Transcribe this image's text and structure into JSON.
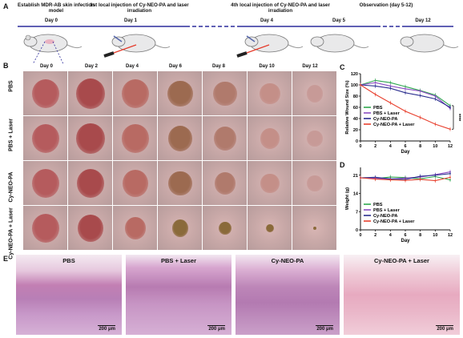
{
  "panel_letters": {
    "a": "A",
    "b": "B",
    "c": "C",
    "d": "D",
    "e": "E"
  },
  "timeline": {
    "steps": [
      {
        "title": "Establish MDR-AB skin infection model",
        "day": "Day 0"
      },
      {
        "title": "1st local injection of Cy-NEO-PA and laser irradiation",
        "day": "Day 1"
      },
      {
        "title": "4th local injection of Cy-NEO-PA and laser irradiation",
        "day": "Day 4"
      },
      {
        "title": "Observation (day 5-12)",
        "day": "Day 5"
      },
      {
        "title": "",
        "day": "Day 12"
      }
    ],
    "colors": {
      "line": "#2c2c9c",
      "laser": "#e53b2b"
    }
  },
  "photo_grid": {
    "days": [
      "Day 0",
      "Day 2",
      "Day 4",
      "Day 6",
      "Day 8",
      "Day 10",
      "Day 12"
    ],
    "groups": [
      "PBS",
      "PBS + Laser",
      "Cy-NEO-PA",
      "Cy-NEO-PA + Laser"
    ]
  },
  "histology": {
    "groups": [
      "PBS",
      "PBS + Laser",
      "Cy-NEO-PA",
      "Cy-NEO-PA + Laser"
    ],
    "scale_label": "200 μm"
  },
  "chart_data": [
    {
      "type": "line",
      "ylabel": "Relative Wound Size (%)",
      "xlabel": "Day",
      "x": [
        0,
        2,
        4,
        6,
        8,
        10,
        12
      ],
      "xticks": [
        "0",
        "2",
        "4",
        "6",
        "8",
        "10",
        "12"
      ],
      "ylim": [
        0,
        120
      ],
      "yticks": [
        "0",
        "20",
        "40",
        "60",
        "80",
        "100",
        "120"
      ],
      "annotation": "****",
      "legend_position": "bottom-left",
      "series": [
        {
          "name": "PBS",
          "color": "#2fa84f",
          "values": [
            100,
            108,
            104,
            97,
            90,
            82,
            63
          ]
        },
        {
          "name": "PBS + Laser",
          "color": "#8b4cc2",
          "values": [
            100,
            104,
            98,
            93,
            89,
            80,
            58
          ]
        },
        {
          "name": "Cy-NEO-PA",
          "color": "#2b2f8f",
          "values": [
            100,
            98,
            94,
            86,
            81,
            75,
            60
          ]
        },
        {
          "name": "Cy-NEO-PA + Laser",
          "color": "#e8412f",
          "values": [
            100,
            83,
            68,
            53,
            42,
            30,
            21
          ]
        }
      ]
    },
    {
      "type": "line",
      "ylabel": "Weight (g)",
      "xlabel": "Day",
      "x": [
        0,
        2,
        4,
        6,
        8,
        10,
        12
      ],
      "xticks": [
        "0",
        "2",
        "4",
        "6",
        "8",
        "10",
        "12"
      ],
      "ylim": [
        0,
        24
      ],
      "yticks": [
        "0",
        "7",
        "14",
        "21"
      ],
      "legend_position": "bottom-left",
      "series": [
        {
          "name": "PBS",
          "color": "#2fa84f",
          "values": [
            20,
            19.7,
            20.3,
            20.1,
            19.6,
            20.5,
            19.2
          ]
        },
        {
          "name": "PBS + Laser",
          "color": "#8b4cc2",
          "values": [
            20,
            19.8,
            19.5,
            19.9,
            20.3,
            21.2,
            22.3
          ]
        },
        {
          "name": "Cy-NEO-PA",
          "color": "#2b2f8f",
          "values": [
            20,
            20.2,
            19.6,
            19.4,
            20.6,
            21.0,
            21.6
          ]
        },
        {
          "name": "Cy-NEO-PA + Laser",
          "color": "#e8412f",
          "values": [
            20,
            19.5,
            19.2,
            19.0,
            19.4,
            18.9,
            20.2
          ]
        }
      ]
    }
  ]
}
